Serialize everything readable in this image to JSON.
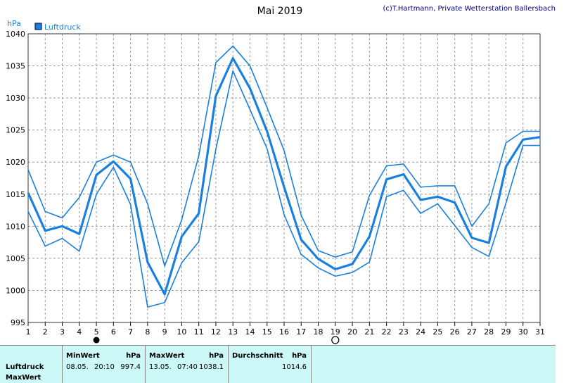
{
  "chart_data": {
    "type": "line",
    "title": "Mai 2019",
    "credit": "(c)T.Hartmann, Private Wetterstation Ballersbach",
    "ylabel": "hPa",
    "ylim": [
      995,
      1040
    ],
    "yticks": [
      995,
      1000,
      1005,
      1010,
      1015,
      1020,
      1025,
      1030,
      1035,
      1040
    ],
    "x": [
      1,
      2,
      3,
      4,
      5,
      6,
      7,
      8,
      9,
      10,
      11,
      12,
      13,
      14,
      15,
      16,
      17,
      18,
      19,
      20,
      21,
      22,
      23,
      24,
      25,
      26,
      27,
      28,
      29,
      30,
      31
    ],
    "legend": [
      "Luftdruck"
    ],
    "series": [
      {
        "name": "Luftdruck Max",
        "values": [
          1018.8,
          1012.3,
          1011.3,
          1014.5,
          1020.0,
          1021.1,
          1020.0,
          1013.5,
          1003.8,
          1011.0,
          1021.0,
          1035.5,
          1038.1,
          1035.0,
          1028.5,
          1021.8,
          1011.7,
          1006.2,
          1005.2,
          1006.0,
          1014.8,
          1019.4,
          1019.7,
          1016.1,
          1016.3,
          1016.3,
          1010.0,
          1013.5,
          1023.0,
          1024.8,
          1024.8
        ]
      },
      {
        "name": "Luftdruck",
        "values": [
          1015.2,
          1009.3,
          1010.0,
          1008.8,
          1018.0,
          1020.1,
          1017.4,
          1004.4,
          999.4,
          1008.4,
          1012.0,
          1030.3,
          1036.2,
          1031.5,
          1024.8,
          1016.1,
          1007.9,
          1004.9,
          1003.3,
          1004.1,
          1008.4,
          1017.3,
          1018.1,
          1014.1,
          1014.6,
          1013.7,
          1008.2,
          1007.4,
          1019.3,
          1023.5,
          1023.9
        ]
      },
      {
        "name": "Luftdruck Min",
        "values": [
          1012.3,
          1006.9,
          1008.1,
          1006.1,
          1015.0,
          1019.2,
          1013.4,
          997.4,
          998.1,
          1004.3,
          1007.6,
          1022.0,
          1034.2,
          1028.2,
          1022.1,
          1011.8,
          1005.6,
          1003.5,
          1002.2,
          1002.8,
          1004.4,
          1014.6,
          1015.6,
          1012.0,
          1013.5,
          1010.1,
          1006.7,
          1005.3,
          1013.6,
          1022.6,
          1022.6
        ]
      }
    ],
    "markers": [
      {
        "day": 5,
        "symbol": "full-moon"
      },
      {
        "day": 19,
        "symbol": "new-moon"
      }
    ]
  },
  "summary": {
    "row_labels": [
      "Luftdruck",
      "MaxWert"
    ],
    "min_header": "MinWert",
    "max_header": "MaxWert",
    "avg_header": "Durchschnitt",
    "unit": "hPa",
    "min_date": "08.05.",
    "min_time": "20:10",
    "min_value": "997.4",
    "max_date": "13.05.",
    "max_time": "07:40",
    "max_value": "1038.1",
    "avg_value": "1014.6"
  },
  "colors": {
    "line": "#1a80e0",
    "grid": "#9a9a9a",
    "panel": "#ccf8f8"
  }
}
